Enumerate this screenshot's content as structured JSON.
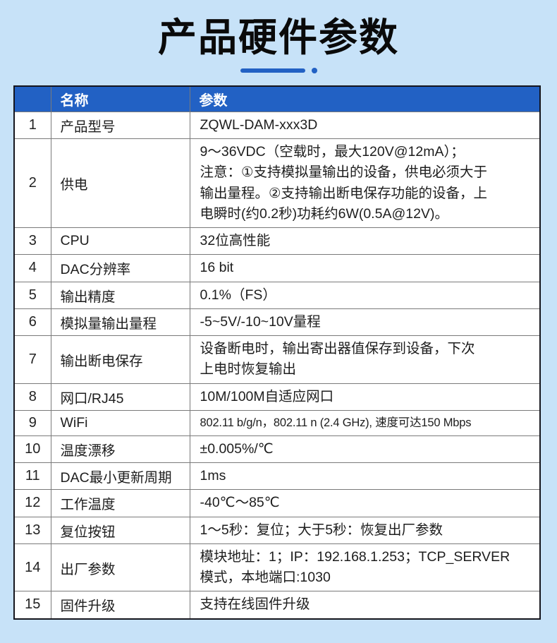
{
  "page": {
    "title": "产品硬件参数",
    "background_color": "#c7e2f8",
    "accent_color": "#2261c4"
  },
  "table": {
    "header_bg": "#2261c4",
    "headers": {
      "index": "",
      "name": "名称",
      "value": "参数"
    },
    "rows": [
      {
        "num": "1",
        "name": "产品型号",
        "value": "ZQWL-DAM-xxx3D"
      },
      {
        "num": "2",
        "name": "供电",
        "value": "9～36VDC（空载时，最大120V@12mA）；\n注意：①支持模拟量输出的设备，供电必须大于\n输出量程。②支持输出断电保存功能的设备，上\n电瞬时(约0.2秒)功耗约6W(0.5A@12V)。"
      },
      {
        "num": "3",
        "name": "CPU",
        "value": "32位高性能"
      },
      {
        "num": "4",
        "name": "DAC分辨率",
        "value": "16 bit"
      },
      {
        "num": "5",
        "name": "输出精度",
        "value": "0.1%（FS）"
      },
      {
        "num": "6",
        "name": "模拟量输出量程",
        "value": "-5~5V/-10~10V量程"
      },
      {
        "num": "7",
        "name": "输出断电保存",
        "value": "设备断电时，输出寄出器值保存到设备，下次\n上电时恢复输出"
      },
      {
        "num": "8",
        "name": "网口/RJ45",
        "value": "10M/100M自适应网口"
      },
      {
        "num": "9",
        "name": "WiFi",
        "value": "802.11 b/g/n，802.11 n (2.4 GHz), 速度可达150 Mbps",
        "small": true
      },
      {
        "num": "10",
        "name": "温度漂移",
        "value": "±0.005%/℃"
      },
      {
        "num": "11",
        "name": "DAC最小更新周期",
        "value": "1ms"
      },
      {
        "num": "12",
        "name": "工作温度",
        "value": "-40℃～85℃"
      },
      {
        "num": "13",
        "name": "复位按钮",
        "value": "1～5秒：复位；大于5秒：恢复出厂参数"
      },
      {
        "num": "14",
        "name": "出厂参数",
        "value": "模块地址：1；IP：192.168.1.253；TCP_SERVER\n模式，本地端口:1030"
      },
      {
        "num": "15",
        "name": "固件升级",
        "value": "支持在线固件升级"
      }
    ]
  }
}
